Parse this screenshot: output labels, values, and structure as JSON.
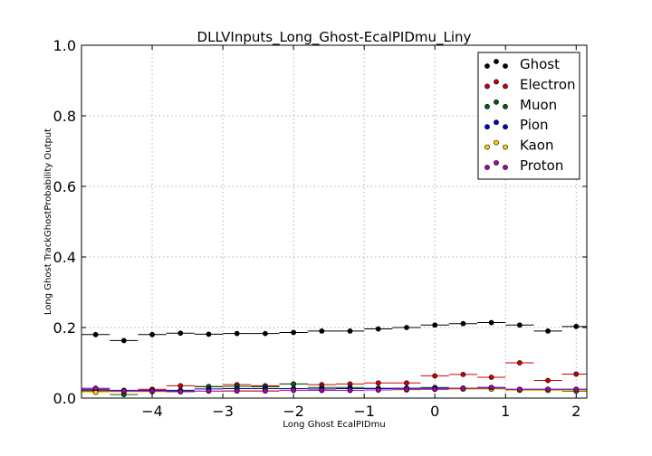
{
  "chart_data": {
    "type": "scatter",
    "title": "DLLVInputs_Long_Ghost-EcalPIDmu_Liny",
    "xlabel": "Long Ghost EcalPIDmu",
    "ylabel": "Long Ghost TrackGhostProbability Output",
    "xlim": [
      -5.0,
      2.15
    ],
    "ylim": [
      0.0,
      1.0
    ],
    "x_ticks": [
      -4,
      -3,
      -2,
      -1,
      0,
      1,
      2
    ],
    "x_tick_labels": [
      "−4",
      "−3",
      "−2",
      "−1",
      "0",
      "1",
      "2"
    ],
    "y_ticks": [
      0.0,
      0.2,
      0.4,
      0.6,
      0.8,
      1.0
    ],
    "y_tick_labels": [
      "0.0",
      "0.2",
      "0.4",
      "0.6",
      "0.8",
      "1.0"
    ],
    "grid": true,
    "legend_position": "top-right",
    "bin_width": 0.4,
    "x": [
      -4.8,
      -4.4,
      -4.0,
      -3.6,
      -3.2,
      -2.8,
      -2.4,
      -2.0,
      -1.6,
      -1.2,
      -0.8,
      -0.4,
      0.0,
      0.4,
      0.8,
      1.2,
      1.6,
      2.0
    ],
    "series": [
      {
        "name": "Ghost",
        "color": "#000000",
        "values": [
          0.18,
          0.163,
          0.18,
          0.184,
          0.181,
          0.183,
          0.183,
          0.186,
          0.19,
          0.19,
          0.196,
          0.2,
          0.207,
          0.211,
          0.214,
          0.207,
          0.19,
          0.203
        ]
      },
      {
        "name": "Electron",
        "color": "#cc0000",
        "values": [
          0.02,
          0.018,
          0.025,
          0.035,
          0.032,
          0.038,
          0.035,
          0.04,
          0.038,
          0.04,
          0.043,
          0.043,
          0.063,
          0.067,
          0.059,
          0.1,
          0.05,
          0.068
        ]
      },
      {
        "name": "Muon",
        "color": "#006400",
        "values": [
          0.022,
          0.01,
          0.02,
          0.02,
          0.033,
          0.033,
          0.032,
          0.04,
          0.03,
          0.03,
          0.028,
          0.028,
          0.03,
          0.028,
          0.03,
          0.022,
          0.022,
          0.02
        ]
      },
      {
        "name": "Pion",
        "color": "#0000cc",
        "values": [
          0.025,
          0.022,
          0.022,
          0.022,
          0.026,
          0.027,
          0.027,
          0.027,
          0.026,
          0.027,
          0.027,
          0.028,
          0.028,
          0.027,
          0.028,
          0.025,
          0.025,
          0.025
        ]
      },
      {
        "name": "Kaon",
        "color": "#ffcc00",
        "values": [
          0.016,
          0.018,
          0.018,
          0.018,
          0.02,
          0.022,
          0.022,
          0.023,
          0.022,
          0.022,
          0.023,
          0.023,
          0.025,
          0.025,
          0.025,
          0.022,
          0.022,
          0.022
        ]
      },
      {
        "name": "Proton",
        "color": "#aa00aa",
        "values": [
          0.028,
          0.02,
          0.02,
          0.018,
          0.02,
          0.02,
          0.02,
          0.022,
          0.022,
          0.022,
          0.023,
          0.025,
          0.025,
          0.028,
          0.03,
          0.025,
          0.025,
          0.025
        ]
      }
    ]
  }
}
